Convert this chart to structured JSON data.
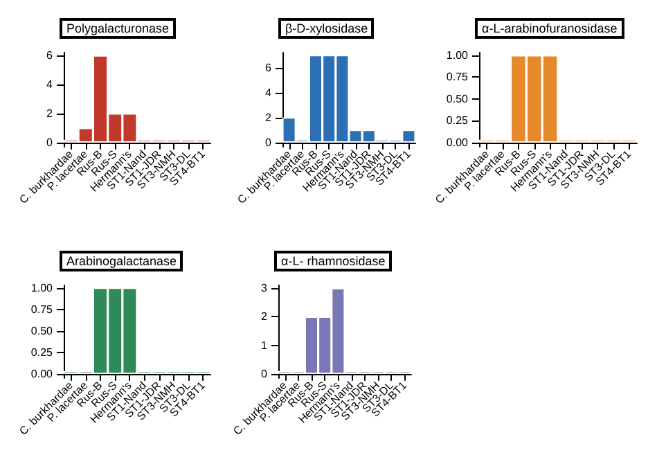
{
  "chart_data": [
    {
      "type": "bar",
      "title": "Polygalacturonase",
      "categories": [
        "C. burkhardae",
        "P. lacertae",
        "Rus-B",
        "Rus-S",
        "Hermann's",
        "ST1-Nand",
        "ST1-JDR",
        "ST3-NMH",
        "ST3-DL",
        "ST4-BT1"
      ],
      "values": [
        0,
        1,
        6,
        2,
        2,
        0,
        0,
        0,
        0,
        0
      ],
      "color": "#c0392b",
      "ylim": [
        -0.3,
        6.2
      ],
      "yticks": [
        0,
        2,
        4,
        6
      ]
    },
    {
      "type": "bar",
      "title": "β-D-xylosidase",
      "categories": [
        "C. burkhardae",
        "P. lacertae",
        "Rus-B",
        "Rus-S",
        "Hermann's",
        "ST1-Nand",
        "ST1-JDR",
        "ST3-NMH",
        "ST3-DL",
        "ST4-BT1"
      ],
      "values": [
        2,
        0,
        7,
        7,
        7,
        1,
        1,
        0,
        0,
        1
      ],
      "color": "#2b70b3",
      "ylim": [
        -0.35,
        7.2
      ],
      "yticks": [
        0,
        2,
        4,
        6
      ]
    },
    {
      "type": "bar",
      "title": "α-L-arabinofuranosidase",
      "categories": [
        "C. burkhardae",
        "P. lacertae",
        "Rus-B",
        "Rus-S",
        "Hermann's",
        "ST1-Nand",
        "ST1-JDR",
        "ST3-NMH",
        "ST3-DL",
        "ST4-BT1"
      ],
      "values": [
        0,
        0,
        1,
        1,
        1,
        0,
        0,
        0,
        0,
        0
      ],
      "color": "#e6892b",
      "ylim": [
        -0.05,
        1.03
      ],
      "yticks": [
        {
          "value": 0,
          "label": "0.00"
        },
        {
          "value": 0.25,
          "label": "0.25"
        },
        {
          "value": 0.5,
          "label": "0.50"
        },
        {
          "value": 0.75,
          "label": "0.75"
        },
        {
          "value": 1,
          "label": "1.00"
        }
      ]
    },
    {
      "type": "bar",
      "title": "Arabinogalactanase",
      "categories": [
        "C. burkhardae",
        "P. lacertae",
        "Rus-B",
        "Rus-S",
        "Hermann's",
        "ST1-Nand",
        "ST1-JDR",
        "ST3-NMH",
        "ST3-DL",
        "ST4-BT1"
      ],
      "values": [
        0,
        0,
        1,
        1,
        1,
        0,
        0,
        0,
        0,
        0
      ],
      "color": "#2e8a56",
      "ylim": [
        -0.05,
        1.03
      ],
      "yticks": [
        {
          "value": 0,
          "label": "0.00"
        },
        {
          "value": 0.25,
          "label": "0.25"
        },
        {
          "value": 0.5,
          "label": "0.50"
        },
        {
          "value": 0.75,
          "label": "0.75"
        },
        {
          "value": 1,
          "label": "1.00"
        }
      ]
    },
    {
      "type": "bar",
      "title": "α-L- rhamnosidase",
      "categories": [
        "C. burkhardae",
        "P. lacertae",
        "Rus-B",
        "Rus-S",
        "Hermann's",
        "ST1-Nand",
        "ST1-JDR",
        "ST3-NMH",
        "ST3-DL",
        "ST4-BT1"
      ],
      "values": [
        0,
        0,
        2,
        2,
        3,
        0,
        0,
        0,
        0,
        0
      ],
      "color": "#7a78b4",
      "ylim": [
        -0.15,
        3.1
      ],
      "yticks": [
        0,
        1,
        2,
        3
      ]
    }
  ]
}
